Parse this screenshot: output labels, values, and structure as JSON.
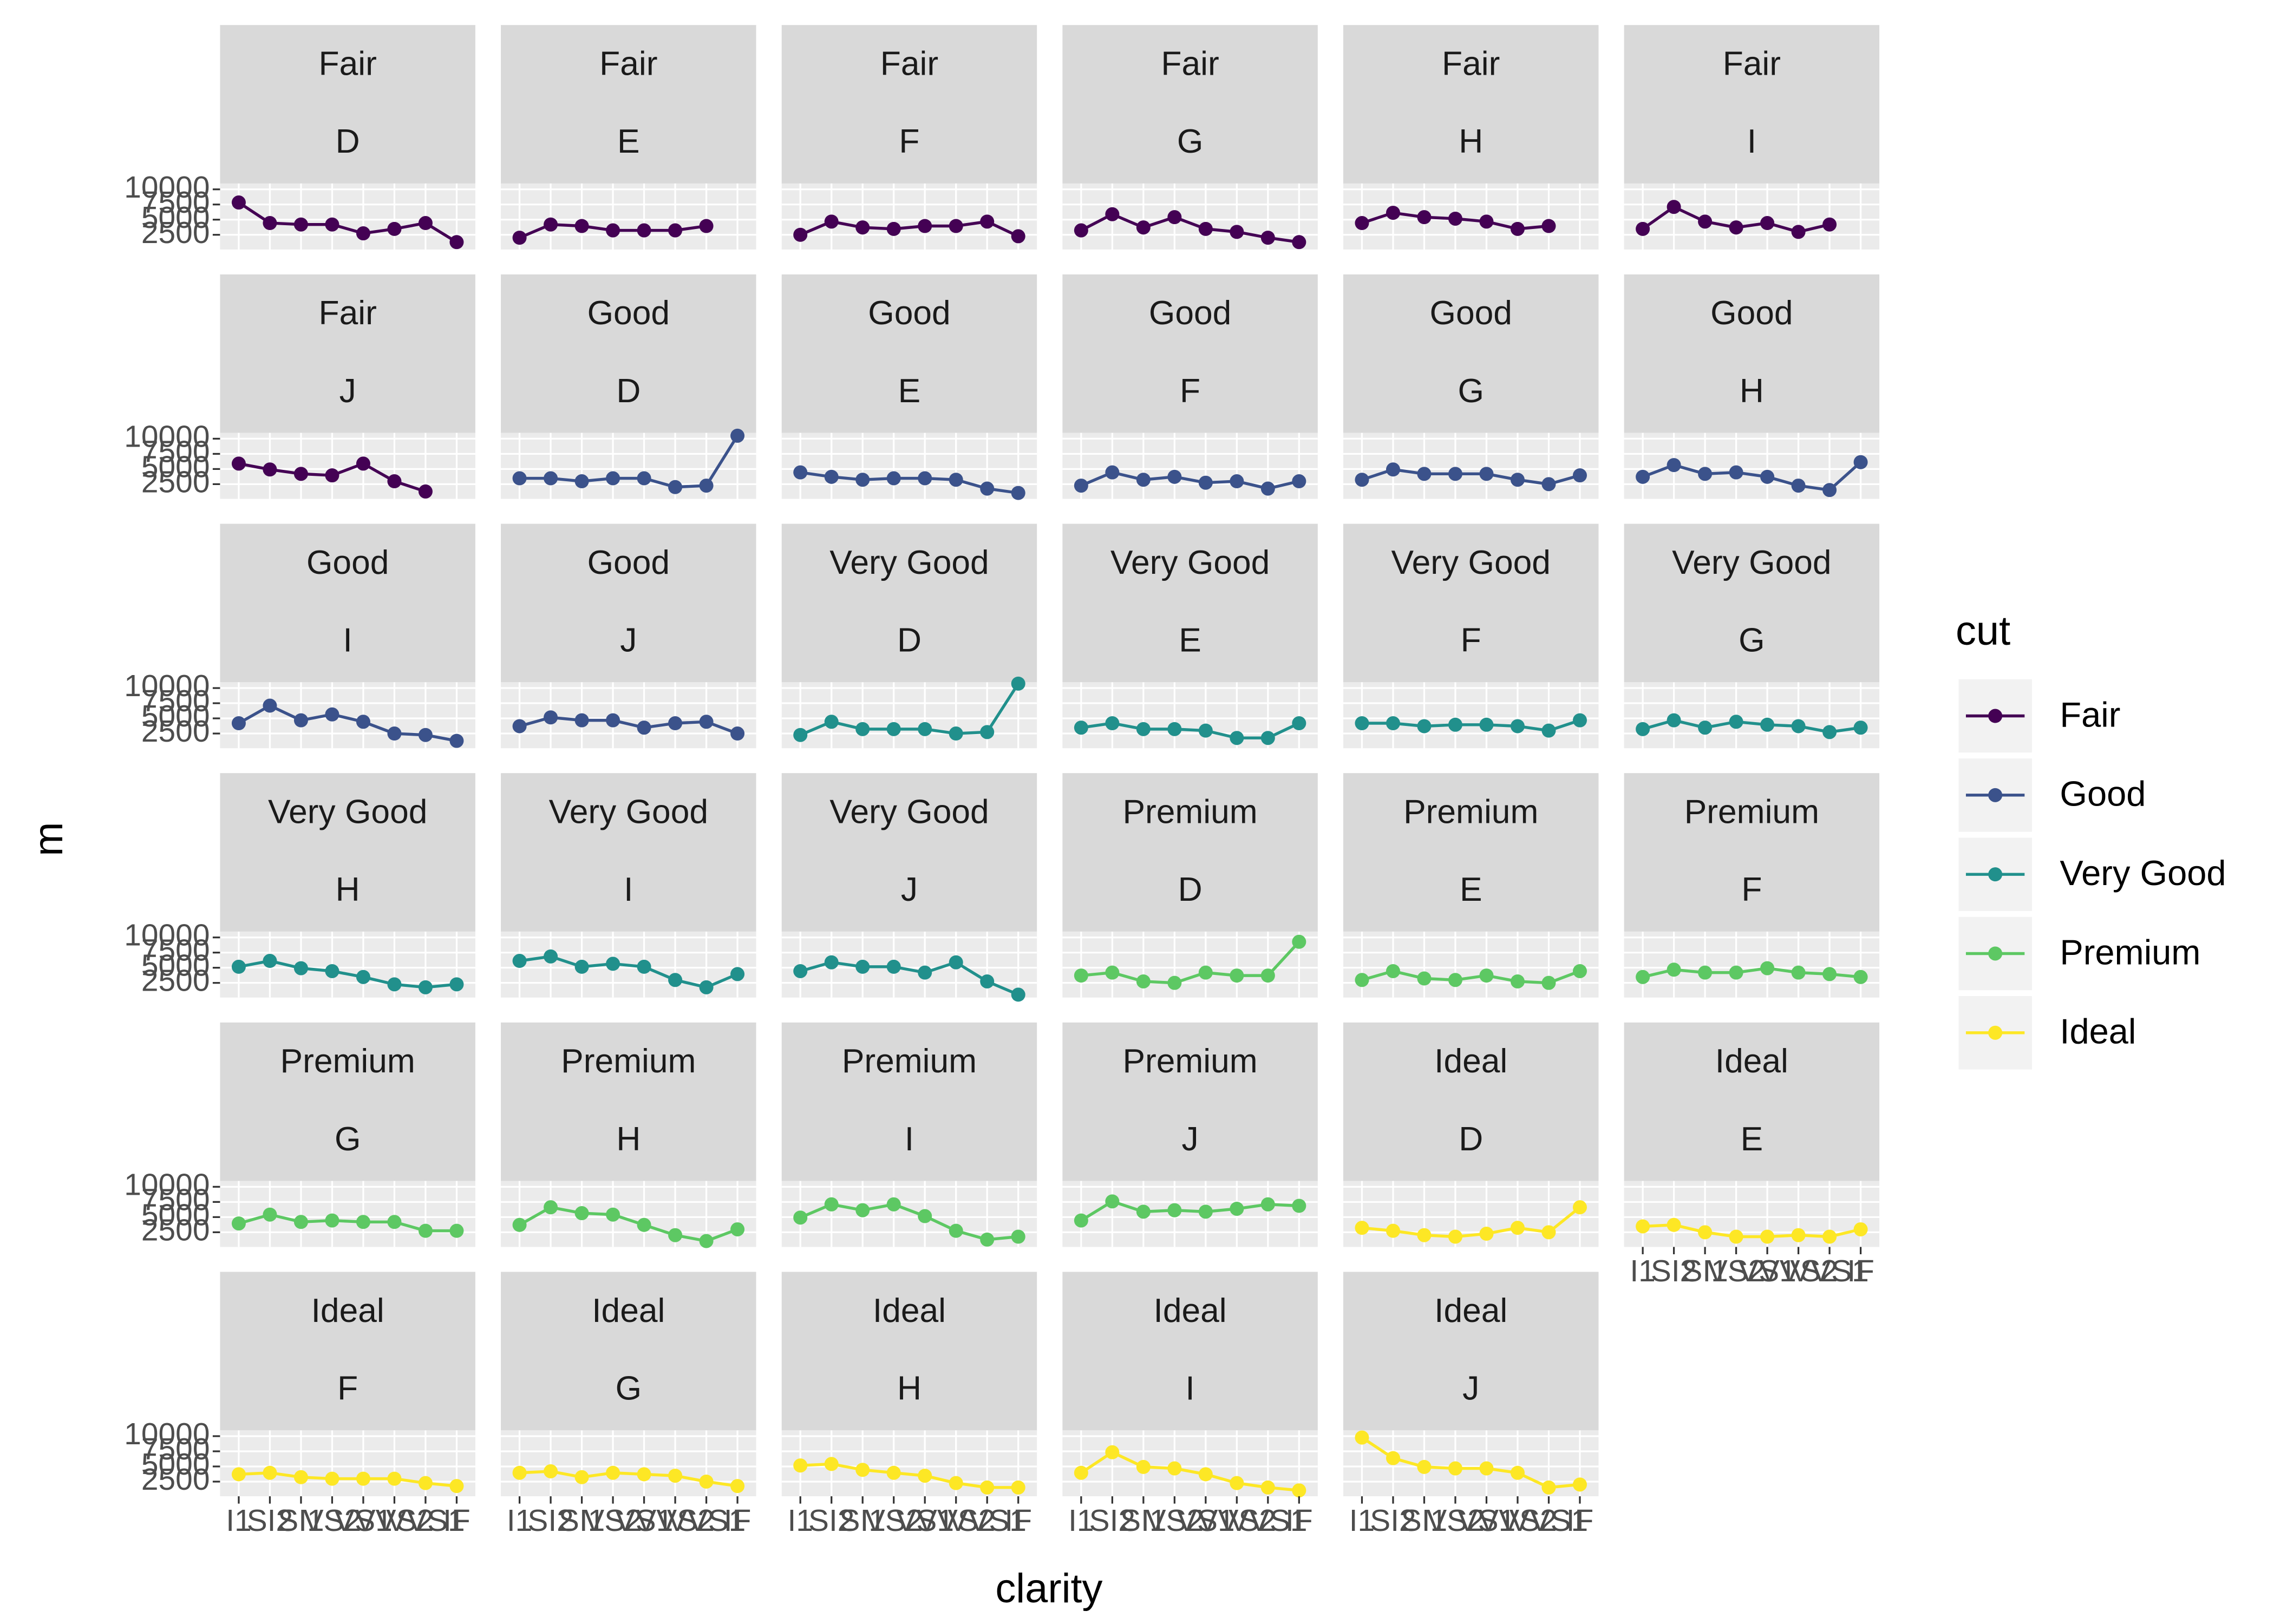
{
  "chart_data": {
    "type": "line",
    "x_label": "clarity",
    "y_label": "m",
    "legend_title": "cut",
    "categories": [
      "I1",
      "SI2",
      "SI1",
      "VS2",
      "VS1",
      "VVS2",
      "VVS1",
      "IF"
    ],
    "ylim": [
      80,
      10970
    ],
    "yticks": [
      2500,
      5000,
      7500,
      10000
    ],
    "grid": true,
    "series": [
      {
        "name": "Fair",
        "color": "#440154"
      },
      {
        "name": "Good",
        "color": "#3b528b"
      },
      {
        "name": "Very Good",
        "color": "#21908c"
      },
      {
        "name": "Premium",
        "color": "#5dc863"
      },
      {
        "name": "Ideal",
        "color": "#fde725"
      }
    ],
    "panels": [
      {
        "cut": "Fair",
        "color": "D",
        "values": [
          7830,
          4440,
          4200,
          4200,
          2740,
          3470,
          4440,
          1290
        ]
      },
      {
        "cut": "Fair",
        "color": "E",
        "values": [
          2020,
          4200,
          3950,
          3230,
          3230,
          3230,
          3950,
          null
        ]
      },
      {
        "cut": "Fair",
        "color": "F",
        "values": [
          2500,
          4680,
          3710,
          3470,
          3950,
          3950,
          4680,
          2260
        ]
      },
      {
        "cut": "Fair",
        "color": "G",
        "values": [
          3230,
          5890,
          3710,
          5410,
          3470,
          2980,
          2020,
          1290
        ]
      },
      {
        "cut": "Fair",
        "color": "H",
        "values": [
          4440,
          6130,
          5410,
          5160,
          4680,
          3470,
          3950,
          null
        ]
      },
      {
        "cut": "Fair",
        "color": "I",
        "values": [
          3470,
          7100,
          4680,
          3710,
          4440,
          2980,
          4200,
          null
        ]
      },
      {
        "cut": "Fair",
        "color": "J",
        "values": [
          5890,
          4920,
          4200,
          3950,
          5890,
          2980,
          1290,
          null
        ]
      },
      {
        "cut": "Good",
        "color": "D",
        "values": [
          3470,
          3470,
          2980,
          3470,
          3470,
          2020,
          2260,
          10490
        ]
      },
      {
        "cut": "Good",
        "color": "E",
        "values": [
          4440,
          3710,
          3230,
          3470,
          3470,
          3230,
          1770,
          1050
        ]
      },
      {
        "cut": "Good",
        "color": "F",
        "values": [
          2260,
          4440,
          3230,
          3710,
          2740,
          2980,
          1770,
          2980
        ]
      },
      {
        "cut": "Good",
        "color": "G",
        "values": [
          3230,
          4920,
          4200,
          4200,
          4200,
          3230,
          2500,
          3950
        ]
      },
      {
        "cut": "Good",
        "color": "H",
        "values": [
          3710,
          5650,
          4200,
          4440,
          3710,
          2260,
          1530,
          6130
        ]
      },
      {
        "cut": "Good",
        "color": "I",
        "values": [
          4200,
          7100,
          4680,
          5650,
          4440,
          2500,
          2260,
          1290
        ]
      },
      {
        "cut": "Good",
        "color": "J",
        "values": [
          3710,
          5160,
          4680,
          4680,
          3470,
          4200,
          4440,
          2500
        ]
      },
      {
        "cut": "Very Good",
        "color": "D",
        "values": [
          2260,
          4440,
          3230,
          3230,
          3230,
          2500,
          2740,
          10730
        ]
      },
      {
        "cut": "Very Good",
        "color": "E",
        "values": [
          3470,
          4200,
          3230,
          3230,
          2980,
          1770,
          1770,
          4200
        ]
      },
      {
        "cut": "Very Good",
        "color": "F",
        "values": [
          4200,
          4200,
          3710,
          3950,
          3950,
          3710,
          2980,
          4680
        ]
      },
      {
        "cut": "Very Good",
        "color": "G",
        "values": [
          3230,
          4680,
          3470,
          4440,
          3950,
          3710,
          2740,
          3470
        ]
      },
      {
        "cut": "Very Good",
        "color": "H",
        "values": [
          5160,
          6130,
          4920,
          4440,
          3470,
          2260,
          1770,
          2260
        ]
      },
      {
        "cut": "Very Good",
        "color": "I",
        "values": [
          6130,
          6860,
          5160,
          5650,
          5160,
          2980,
          1770,
          3950
        ]
      },
      {
        "cut": "Very Good",
        "color": "J",
        "values": [
          4440,
          5890,
          5160,
          5160,
          4200,
          5890,
          2740,
          560
        ]
      },
      {
        "cut": "Premium",
        "color": "D",
        "values": [
          3710,
          4200,
          2740,
          2500,
          4200,
          3710,
          3710,
          9280
        ]
      },
      {
        "cut": "Premium",
        "color": "E",
        "values": [
          2980,
          4440,
          3230,
          2980,
          3710,
          2740,
          2500,
          4440
        ]
      },
      {
        "cut": "Premium",
        "color": "F",
        "values": [
          3470,
          4680,
          4200,
          4200,
          4920,
          4200,
          3950,
          3470
        ]
      },
      {
        "cut": "Premium",
        "color": "G",
        "values": [
          3950,
          5410,
          4200,
          4440,
          4200,
          4200,
          2740,
          2740
        ]
      },
      {
        "cut": "Premium",
        "color": "H",
        "values": [
          3710,
          6620,
          5650,
          5410,
          3710,
          2020,
          1050,
          2980
        ]
      },
      {
        "cut": "Premium",
        "color": "I",
        "values": [
          4920,
          7100,
          6130,
          7100,
          5160,
          2740,
          1290,
          1770
        ]
      },
      {
        "cut": "Premium",
        "color": "J",
        "values": [
          4440,
          7590,
          5890,
          6130,
          5890,
          6370,
          7100,
          6860
        ]
      },
      {
        "cut": "Ideal",
        "color": "D",
        "values": [
          3230,
          2740,
          2020,
          1770,
          2260,
          3230,
          2500,
          6620
        ]
      },
      {
        "cut": "Ideal",
        "color": "E",
        "values": [
          3470,
          3710,
          2500,
          1770,
          1770,
          2020,
          1770,
          2980
        ]
      },
      {
        "cut": "Ideal",
        "color": "F",
        "values": [
          3710,
          3950,
          3230,
          2980,
          2980,
          2980,
          2260,
          1770
        ]
      },
      {
        "cut": "Ideal",
        "color": "G",
        "values": [
          3950,
          4200,
          3230,
          3950,
          3710,
          3470,
          2500,
          1770
        ]
      },
      {
        "cut": "Ideal",
        "color": "H",
        "values": [
          5160,
          5410,
          4440,
          3950,
          3470,
          2260,
          1530,
          1530
        ]
      },
      {
        "cut": "Ideal",
        "color": "I",
        "values": [
          3950,
          7340,
          4920,
          4680,
          3710,
          2260,
          1530,
          1050
        ]
      },
      {
        "cut": "Ideal",
        "color": "J",
        "values": [
          9770,
          6370,
          4920,
          4680,
          4680,
          3950,
          1530,
          2020
        ]
      }
    ]
  }
}
